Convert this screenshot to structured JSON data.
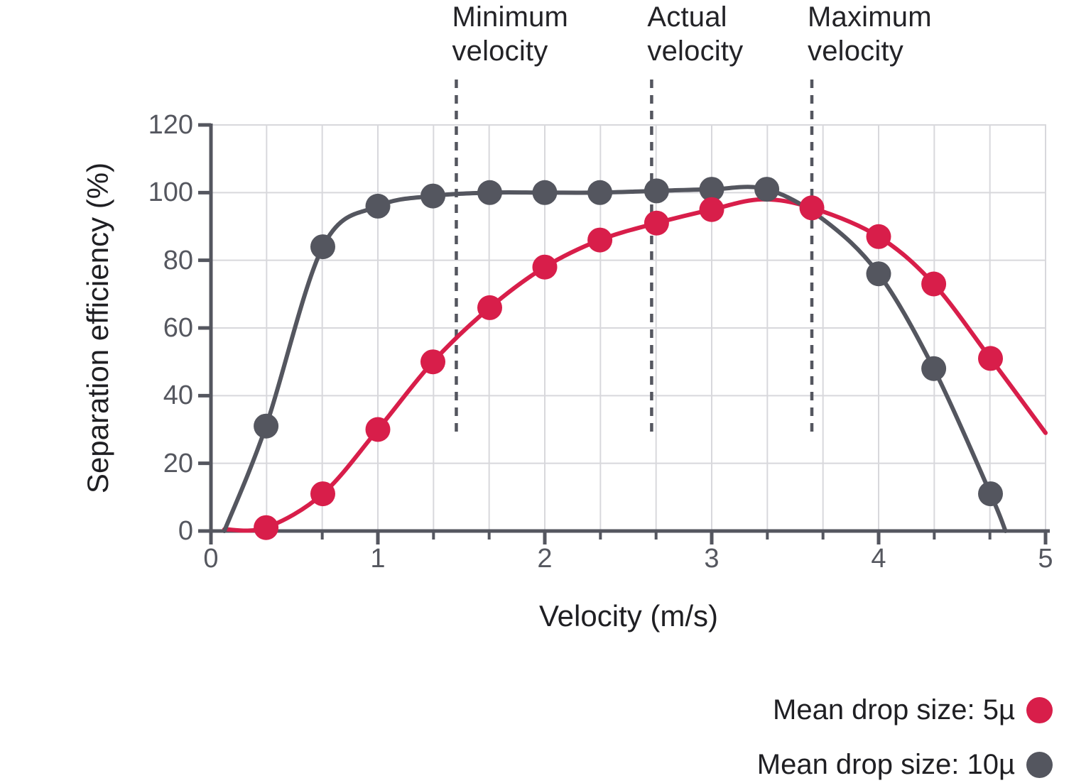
{
  "page": {
    "background": "#FFFFFF"
  },
  "chart_data": {
    "type": "line",
    "title": "",
    "xlabel": "Velocity (m/s)",
    "ylabel": "Separation efficiency (%)",
    "xlim": [
      0,
      5
    ],
    "ylim": [
      0,
      120
    ],
    "x_ticks": [
      0,
      1,
      2,
      3,
      4,
      5
    ],
    "y_ticks": [
      0,
      20,
      40,
      60,
      80,
      100,
      120
    ],
    "x_minor_tick_step": 0.33333,
    "grid": "on",
    "legend_position": "bottom-right",
    "colors": {
      "axis": "#54565F",
      "grid": "#D8D8DC",
      "tick_label": "#55575F",
      "text": "#232327",
      "accent_red": "#D81E4A",
      "accent_gray": "#54565F"
    },
    "annotations": [
      {
        "label": "Minimum\nvelocity",
        "x": 1.47
      },
      {
        "label": "Actual\nvelocity",
        "x": 2.64
      },
      {
        "label": "Maximum\nvelocity",
        "x": 3.6
      }
    ],
    "series": [
      {
        "name": "Mean drop size: 5µ",
        "color": "#D81E4A",
        "marker": "circle",
        "points": [
          [
            0.33,
            1
          ],
          [
            0.67,
            11
          ],
          [
            1,
            30
          ],
          [
            1.33,
            50
          ],
          [
            1.67,
            66
          ],
          [
            2,
            78
          ],
          [
            2.33,
            86
          ],
          [
            2.67,
            91
          ],
          [
            3,
            95
          ],
          [
            3.6,
            95.5
          ],
          [
            4,
            87
          ],
          [
            4.33,
            73
          ],
          [
            4.67,
            51
          ]
        ],
        "curve_path": [
          [
            0.08,
            0.5
          ],
          [
            0.33,
            1
          ],
          [
            0.67,
            11
          ],
          [
            1,
            30
          ],
          [
            1.33,
            50
          ],
          [
            1.67,
            66
          ],
          [
            2,
            78
          ],
          [
            2.33,
            86
          ],
          [
            2.67,
            91
          ],
          [
            3,
            95
          ],
          [
            3.3,
            98
          ],
          [
            3.6,
            95.5
          ],
          [
            4,
            87
          ],
          [
            4.33,
            73
          ],
          [
            4.67,
            51
          ],
          [
            5,
            29
          ]
        ]
      },
      {
        "name": "Mean drop size: 10µ",
        "color": "#54565F",
        "marker": "circle",
        "points": [
          [
            0.33,
            31
          ],
          [
            0.67,
            84
          ],
          [
            1,
            96
          ],
          [
            1.33,
            99
          ],
          [
            1.67,
            100
          ],
          [
            2,
            100
          ],
          [
            2.33,
            100
          ],
          [
            2.67,
            100.5
          ],
          [
            3,
            101
          ],
          [
            3.33,
            101
          ],
          [
            4,
            76
          ],
          [
            4.33,
            48
          ],
          [
            4.67,
            11
          ]
        ],
        "curve_path": [
          [
            0.08,
            0
          ],
          [
            0.33,
            31
          ],
          [
            0.67,
            84
          ],
          [
            1,
            96
          ],
          [
            1.33,
            99
          ],
          [
            1.67,
            100
          ],
          [
            2,
            100
          ],
          [
            2.33,
            100
          ],
          [
            2.67,
            100.5
          ],
          [
            3,
            101
          ],
          [
            3.33,
            101
          ],
          [
            3.67,
            92
          ],
          [
            4,
            76
          ],
          [
            4.33,
            48
          ],
          [
            4.67,
            11
          ],
          [
            4.76,
            0
          ]
        ]
      }
    ]
  }
}
